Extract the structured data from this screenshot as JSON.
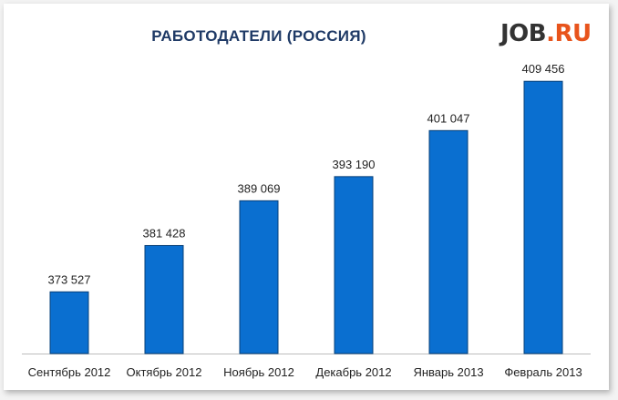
{
  "chart_data": {
    "type": "bar",
    "title": "РАБОТОДАТЕЛИ (РОССИЯ)",
    "categories": [
      "Сентябрь 2012",
      "Октябрь 2012",
      "Ноябрь 2012",
      "Декабрь 2012",
      "Январь 2013",
      "Февраль 2013"
    ],
    "values": [
      373527,
      381428,
      389069,
      393190,
      401047,
      409456
    ],
    "value_labels": [
      "373 527",
      "381 428",
      "389 069",
      "393 190",
      "401 047",
      "409 456"
    ],
    "xlabel": "",
    "ylabel": "",
    "ylim": [
      363000,
      414000
    ],
    "grid": false,
    "legend": "none",
    "bar_color": "#0a6fd0"
  },
  "logo": {
    "text_part1": "JOB",
    "text_part2": ".RU"
  }
}
